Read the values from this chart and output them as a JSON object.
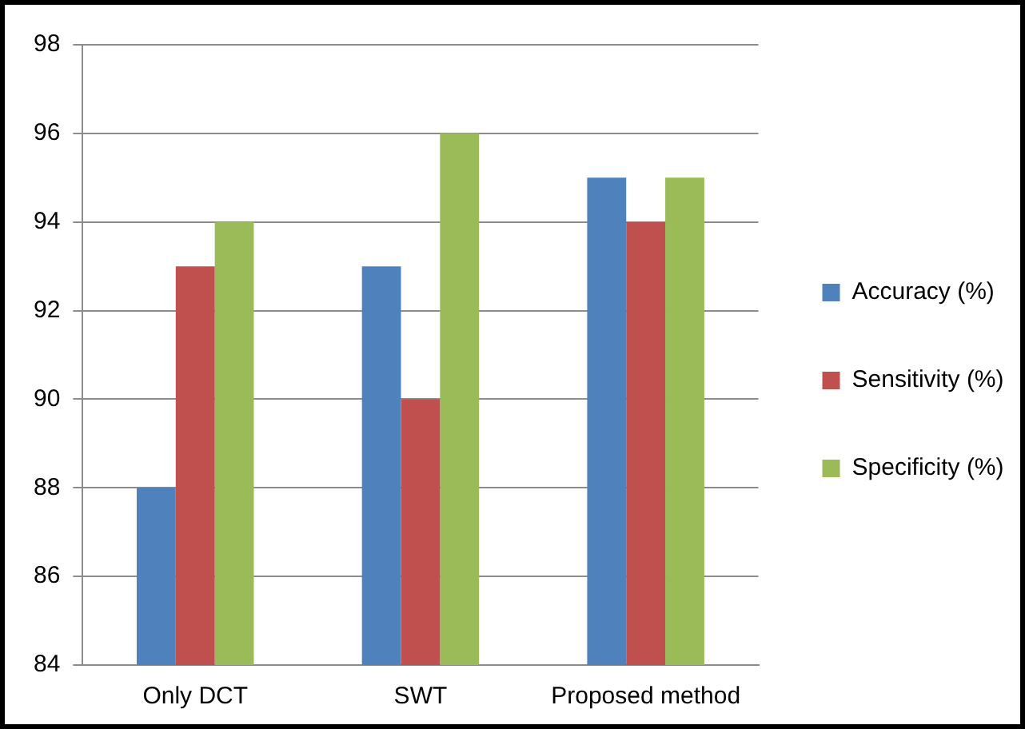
{
  "chart_data": {
    "type": "bar",
    "categories": [
      "Only DCT",
      "SWT",
      "Proposed method"
    ],
    "series": [
      {
        "name": "Accuracy (%)",
        "color": "#4f81bd",
        "values": [
          88,
          93,
          95
        ]
      },
      {
        "name": "Sensitivity (%)",
        "color": "#c0504d",
        "values": [
          93,
          90,
          94
        ]
      },
      {
        "name": "Specificity (%)",
        "color": "#9bbb59",
        "values": [
          94,
          96,
          95
        ]
      }
    ],
    "ylim": [
      84,
      98
    ],
    "yticks": [
      84,
      86,
      88,
      90,
      92,
      94,
      96,
      98
    ],
    "grid": "y",
    "legend": "right"
  }
}
